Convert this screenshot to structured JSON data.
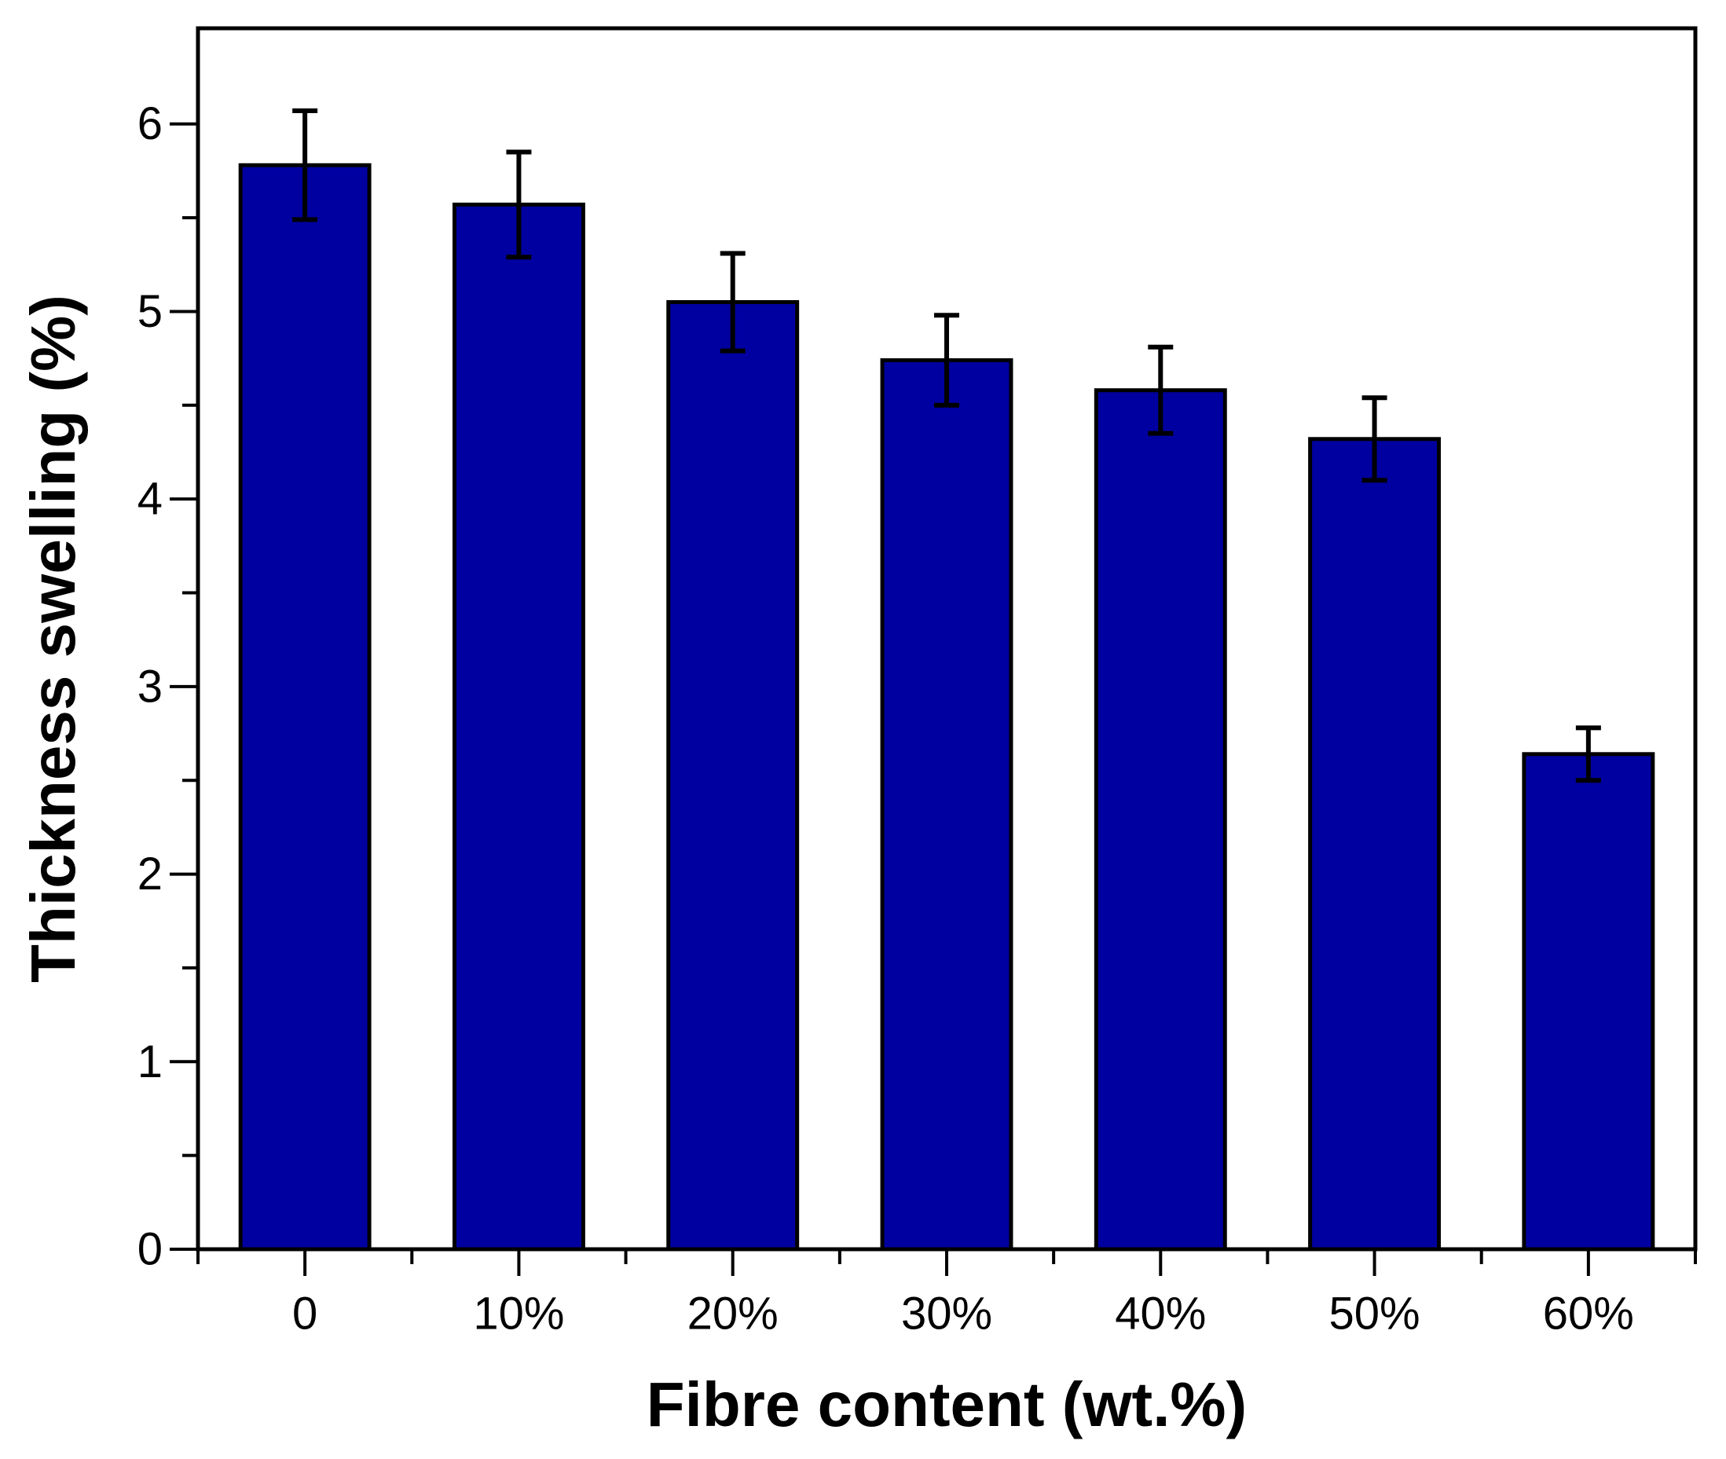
{
  "chart_data": {
    "type": "bar",
    "title": "",
    "xlabel": "Fibre content (wt.%)",
    "ylabel": "Thickness swelling (%)",
    "categories": [
      "0",
      "10%",
      "20%",
      "30%",
      "40%",
      "50%",
      "60%"
    ],
    "values": [
      5.78,
      5.57,
      5.05,
      4.74,
      4.58,
      4.32,
      2.64
    ],
    "errors": [
      0.29,
      0.28,
      0.26,
      0.24,
      0.23,
      0.22,
      0.14
    ],
    "series": [
      {
        "name": "Thickness swelling",
        "values": [
          5.78,
          5.57,
          5.05,
          4.74,
          4.58,
          4.32,
          2.64
        ]
      }
    ],
    "ylim": [
      0,
      6.51
    ],
    "y_major_ticks": [
      0,
      1,
      2,
      3,
      4,
      5,
      6
    ],
    "y_minor_step": 0.5,
    "grid": false,
    "legend": null,
    "bar_color": "#0000A0",
    "bar_border_color": "#000000",
    "error_bar_color": "#000000",
    "axis_color": "#000000",
    "background_color": "#FFFFFF"
  }
}
